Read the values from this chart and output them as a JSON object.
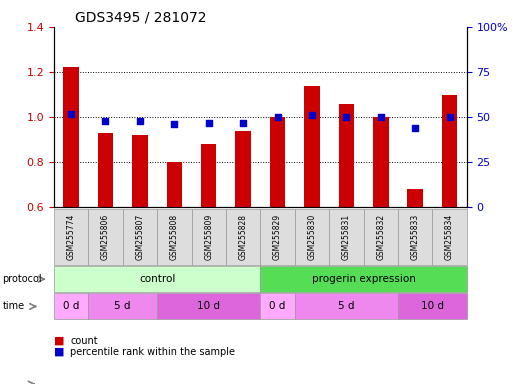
{
  "title": "GDS3495 / 281072",
  "samples": [
    "GSM255774",
    "GSM255806",
    "GSM255807",
    "GSM255808",
    "GSM255809",
    "GSM255828",
    "GSM255829",
    "GSM255830",
    "GSM255831",
    "GSM255832",
    "GSM255833",
    "GSM255834"
  ],
  "count_values": [
    1.22,
    0.93,
    0.92,
    0.8,
    0.88,
    0.94,
    1.0,
    1.14,
    1.06,
    1.0,
    0.68,
    1.1
  ],
  "percentile_values": [
    52,
    48,
    48,
    46,
    47,
    47,
    50,
    51,
    50,
    50,
    44,
    50
  ],
  "ylim_left": [
    0.6,
    1.4
  ],
  "ylim_right": [
    0,
    100
  ],
  "yticks_left": [
    0.6,
    0.8,
    1.0,
    1.2,
    1.4
  ],
  "yticks_right": [
    0,
    25,
    50,
    75,
    100
  ],
  "ytick_labels_right": [
    "0",
    "25",
    "50",
    "75",
    "100%"
  ],
  "bar_color": "#cc0000",
  "dot_color": "#0000cc",
  "protocol_groups": [
    {
      "label": "control",
      "start": 0,
      "end": 5,
      "color": "#ccffcc"
    },
    {
      "label": "progerin expression",
      "start": 6,
      "end": 11,
      "color": "#55dd55"
    }
  ],
  "time_groups": [
    {
      "label": "0 d",
      "start": 0,
      "end": 0,
      "color": "#ffaaff"
    },
    {
      "label": "5 d",
      "start": 1,
      "end": 2,
      "color": "#ee88ee"
    },
    {
      "label": "10 d",
      "start": 3,
      "end": 5,
      "color": "#dd66dd"
    },
    {
      "label": "0 d",
      "start": 6,
      "end": 6,
      "color": "#ffaaff"
    },
    {
      "label": "5 d",
      "start": 7,
      "end": 9,
      "color": "#ee88ee"
    },
    {
      "label": "10 d",
      "start": 10,
      "end": 11,
      "color": "#dd66dd"
    }
  ],
  "legend_count_color": "#cc0000",
  "legend_pct_color": "#0000cc",
  "tick_label_color_left": "#cc0000",
  "tick_label_color_right": "#0000cc",
  "sample_bg_color": "#dddddd"
}
